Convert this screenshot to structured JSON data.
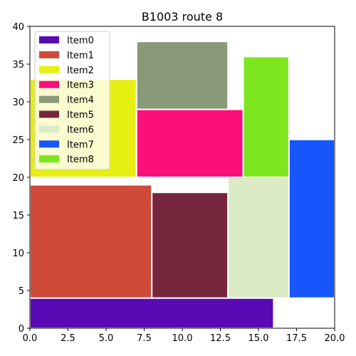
{
  "chart_data": {
    "type": "bar",
    "title": "B1003 route 8",
    "xlabel": "",
    "ylabel": "",
    "xlim": [
      0,
      20
    ],
    "ylim": [
      0,
      40
    ],
    "x_ticks": [
      "0.0",
      "2.5",
      "5.0",
      "7.5",
      "10.0",
      "12.5",
      "15.0",
      "17.5",
      "20.0"
    ],
    "y_ticks": [
      "0",
      "5",
      "10",
      "15",
      "20",
      "25",
      "30",
      "35",
      "40"
    ],
    "grid": false,
    "legend_position": "top-left",
    "series": [
      {
        "name": "Item0",
        "color": "#5a0ab4",
        "x0": 0,
        "x1": 16,
        "y0": 0,
        "y1": 4
      },
      {
        "name": "Item1",
        "color": "#cf4a39",
        "x0": 0,
        "x1": 8,
        "y0": 4,
        "y1": 19
      },
      {
        "name": "Item2",
        "color": "#e6ee12",
        "x0": 0,
        "x1": 7,
        "y0": 20,
        "y1": 33
      },
      {
        "name": "Item3",
        "color": "#fc0f7a",
        "x0": 7,
        "x1": 14,
        "y0": 20,
        "y1": 29
      },
      {
        "name": "Item4",
        "color": "#889a78",
        "x0": 7,
        "x1": 13,
        "y0": 29,
        "y1": 38
      },
      {
        "name": "Item5",
        "color": "#76263c",
        "x0": 8,
        "x1": 13,
        "y0": 4,
        "y1": 18
      },
      {
        "name": "Item6",
        "color": "#dbebc5",
        "x0": 13,
        "x1": 17,
        "y0": 4,
        "y1": 20
      },
      {
        "name": "Item7",
        "color": "#1656fc",
        "x0": 17,
        "x1": 20,
        "y0": 4,
        "y1": 25
      },
      {
        "name": "Item8",
        "color": "#7ee61e",
        "x0": 14,
        "x1": 17,
        "y0": 20,
        "y1": 36
      }
    ]
  }
}
